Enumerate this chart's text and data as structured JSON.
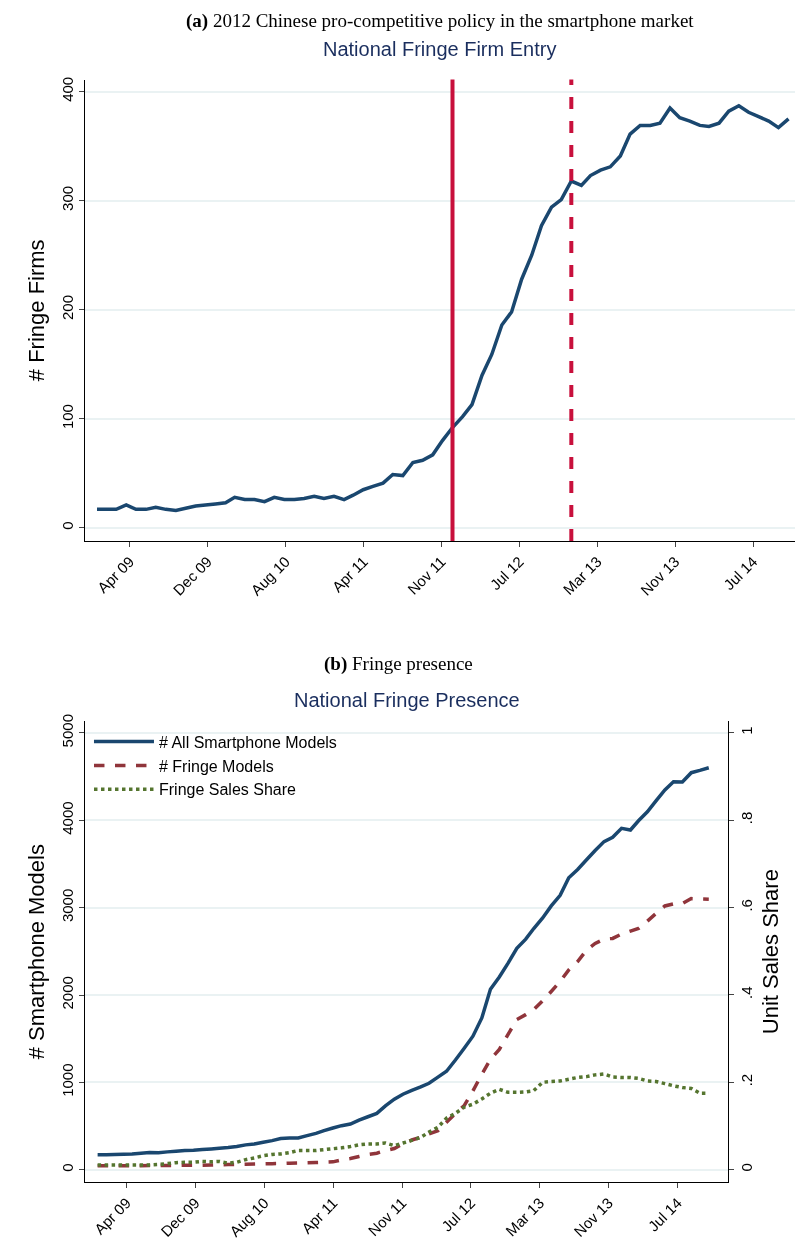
{
  "chart_data": [
    {
      "type": "line",
      "title": "(a) 2012 Chinese pro-competitive policy in the smartphone market",
      "subtitle": "National Fringe Firm Entry",
      "ylabel": "# Fringe Firms",
      "x": [
        "2009-01",
        "2009-02",
        "2009-03",
        "2009-04",
        "2009-05",
        "2009-06",
        "2009-07",
        "2009-08",
        "2009-09",
        "2009-10",
        "2009-11",
        "2009-12",
        "2010-01",
        "2010-02",
        "2010-03",
        "2010-04",
        "2010-05",
        "2010-06",
        "2010-07",
        "2010-08",
        "2010-09",
        "2010-10",
        "2010-11",
        "2010-12",
        "2011-01",
        "2011-02",
        "2011-03",
        "2011-04",
        "2011-05",
        "2011-06",
        "2011-07",
        "2011-08",
        "2011-09",
        "2011-10",
        "2011-11",
        "2011-12",
        "2012-01",
        "2012-02",
        "2012-03",
        "2012-04",
        "2012-05",
        "2012-06",
        "2012-07",
        "2012-08",
        "2012-09",
        "2012-10",
        "2012-11",
        "2012-12",
        "2013-01",
        "2013-02",
        "2013-03",
        "2013-04",
        "2013-05",
        "2013-06",
        "2013-07",
        "2013-08",
        "2013-09",
        "2013-10",
        "2013-11",
        "2013-12",
        "2014-01",
        "2014-02",
        "2014-03",
        "2014-04",
        "2014-05",
        "2014-06",
        "2014-07",
        "2014-08",
        "2014-09",
        "2014-10",
        "2014-11"
      ],
      "series": [
        {
          "color": "#1a476f",
          "values": [
            17,
            17,
            17,
            21,
            17,
            17,
            19,
            17,
            16,
            18,
            20,
            21,
            22,
            23,
            28,
            26,
            26,
            24,
            28,
            26,
            26,
            27,
            29,
            27,
            29,
            26,
            30,
            35,
            38,
            41,
            49,
            48,
            60,
            62,
            67,
            80,
            92,
            102,
            113,
            140,
            159,
            186,
            198,
            228,
            250,
            277,
            294,
            301,
            318,
            314,
            323,
            328,
            331,
            341,
            361,
            369,
            369,
            371,
            385,
            376,
            373,
            369,
            368,
            371,
            382,
            387,
            381,
            377,
            373,
            367,
            375
          ]
        }
      ],
      "xlim": [
        "2008-11-25",
        "2014-11-21"
      ],
      "xticks": [
        {
          "value": "2009-04-12",
          "label": "Apr 09"
        },
        {
          "value": "2009-12-08",
          "label": "Dec 09"
        },
        {
          "value": "2010-08-05",
          "label": "Aug 10"
        },
        {
          "value": "2011-04-02",
          "label": "Apr 11"
        },
        {
          "value": "2011-11-28",
          "label": "Nov 11"
        },
        {
          "value": "2012-07-25",
          "label": "Jul 12"
        },
        {
          "value": "2013-03-22",
          "label": "Mar 13"
        },
        {
          "value": "2013-11-17",
          "label": "Nov 13"
        },
        {
          "value": "2014-07-15",
          "label": "Jul 14"
        }
      ],
      "ylim": [
        -12,
        411
      ],
      "yticks": [
        0,
        100,
        200,
        300,
        400
      ],
      "ref_lines": [
        {
          "axis": "x",
          "value": "2012-01",
          "color": "#c8103c",
          "line_style": "solid"
        },
        {
          "axis": "x",
          "value": "2013-01",
          "color": "#c8103c",
          "line_style": "dashed"
        }
      ],
      "grid": "y",
      "legend": false,
      "marker": "none",
      "line_style": "solid"
    },
    {
      "type": "line",
      "title": "(b) Fringe presence",
      "subtitle": "National Fringe Presence",
      "ylabel": "# Smartphone Models",
      "y2label": "Unit Sales Share",
      "x": [
        "2009-01",
        "2009-02",
        "2009-03",
        "2009-04",
        "2009-05",
        "2009-06",
        "2009-07",
        "2009-08",
        "2009-09",
        "2009-10",
        "2009-11",
        "2009-12",
        "2010-01",
        "2010-02",
        "2010-03",
        "2010-04",
        "2010-05",
        "2010-06",
        "2010-07",
        "2010-08",
        "2010-09",
        "2010-10",
        "2010-11",
        "2010-12",
        "2011-01",
        "2011-02",
        "2011-03",
        "2011-04",
        "2011-05",
        "2011-06",
        "2011-07",
        "2011-08",
        "2011-09",
        "2011-10",
        "2011-11",
        "2011-12",
        "2012-01",
        "2012-02",
        "2012-03",
        "2012-04",
        "2012-05",
        "2012-06",
        "2012-07",
        "2012-08",
        "2012-09",
        "2012-10",
        "2012-11",
        "2012-12",
        "2013-01",
        "2013-02",
        "2013-03",
        "2013-04",
        "2013-05",
        "2013-06",
        "2013-07",
        "2013-08",
        "2013-09",
        "2013-10",
        "2013-11",
        "2013-12",
        "2014-01",
        "2014-02",
        "2014-03",
        "2014-04",
        "2014-05",
        "2014-06",
        "2014-07",
        "2014-08",
        "2014-09",
        "2014-10",
        "2014-11"
      ],
      "series": [
        {
          "name": "# All Smartphone Models",
          "color": "#1a476f",
          "line_style": "solid",
          "values": [
            171,
            171,
            174,
            178,
            182,
            190,
            197,
            194,
            205,
            213,
            220,
            224,
            231,
            239,
            247,
            254,
            266,
            285,
            296,
            315,
            334,
            357,
            364,
            364,
            391,
            417,
            448,
            478,
            505,
            524,
            569,
            607,
            645,
            732,
            808,
            865,
            910,
            948,
            990,
            1060,
            1127,
            1256,
            1389,
            1529,
            1738,
            2067,
            2207,
            2363,
            2534,
            2640,
            2761,
            2883,
            3020,
            3141,
            3343,
            3438,
            3548,
            3654,
            3756,
            3805,
            3908,
            3889,
            3995,
            4097,
            4222,
            4347,
            4442,
            4438,
            4545,
            4571,
            4601
          ]
        },
        {
          "name": "# Fringe Models",
          "color": "#90353b",
          "line_style": "dashed",
          "values": [
            45,
            45,
            46,
            46,
            47,
            47,
            48,
            48,
            49,
            50,
            51,
            52,
            53,
            55,
            58,
            60,
            62,
            64,
            66,
            68,
            70,
            72,
            76,
            78,
            80,
            83,
            86,
            91,
            114,
            129,
            152,
            175,
            190,
            220,
            243,
            296,
            341,
            372,
            410,
            448,
            543,
            645,
            732,
            903,
            1093,
            1263,
            1377,
            1548,
            1719,
            1776,
            1833,
            1935,
            2041,
            2155,
            2288,
            2383,
            2515,
            2591,
            2641,
            2648,
            2698,
            2732,
            2762,
            2846,
            2933,
            3020,
            3043,
            3047,
            3104,
            3100,
            3096
          ]
        },
        {
          "name": "Fringe Sales Share",
          "color": "#55752f",
          "line_style": "dotted",
          "axis": "y2",
          "values": [
            0.011,
            0.011,
            0.011,
            0.011,
            0.011,
            0.011,
            0.011,
            0.012,
            0.014,
            0.016,
            0.017,
            0.017,
            0.019,
            0.018,
            0.019,
            0.015,
            0.017,
            0.023,
            0.027,
            0.032,
            0.035,
            0.036,
            0.039,
            0.044,
            0.044,
            0.044,
            0.046,
            0.048,
            0.05,
            0.053,
            0.057,
            0.059,
            0.059,
            0.061,
            0.055,
            0.061,
            0.067,
            0.074,
            0.086,
            0.097,
            0.118,
            0.129,
            0.143,
            0.15,
            0.162,
            0.175,
            0.184,
            0.177,
            0.177,
            0.178,
            0.181,
            0.2,
            0.202,
            0.203,
            0.207,
            0.211,
            0.213,
            0.217,
            0.219,
            0.212,
            0.211,
            0.211,
            0.209,
            0.203,
            0.202,
            0.197,
            0.192,
            0.188,
            0.186,
            0.175,
            0.175
          ]
        }
      ],
      "xlim": [
        "2008-11-18",
        "2015-01-07"
      ],
      "xticks": [
        {
          "value": "2009-04-12",
          "label": "Apr 09"
        },
        {
          "value": "2009-12-08",
          "label": "Dec 09"
        },
        {
          "value": "2010-08-05",
          "label": "Aug 10"
        },
        {
          "value": "2011-04-02",
          "label": "Apr 11"
        },
        {
          "value": "2011-11-28",
          "label": "Nov 11"
        },
        {
          "value": "2012-07-25",
          "label": "Jul 12"
        },
        {
          "value": "2013-03-22",
          "label": "Mar 13"
        },
        {
          "value": "2013-11-17",
          "label": "Nov 13"
        },
        {
          "value": "2014-07-15",
          "label": "Jul 14"
        }
      ],
      "ylim": [
        -144,
        5137
      ],
      "yticks": [
        0,
        1000,
        2000,
        3000,
        4000,
        5000
      ],
      "y2lim": [
        -0.029,
        1.027
      ],
      "y2ticks": [
        0,
        {
          "value": 0.2,
          "label": ".2"
        },
        {
          "value": 0.4,
          "label": ".4"
        },
        {
          "value": 0.6,
          "label": ".6"
        },
        {
          "value": 0.8,
          "label": ".8"
        },
        1
      ],
      "grid": "y",
      "legend": "top left",
      "marker": "none"
    }
  ]
}
